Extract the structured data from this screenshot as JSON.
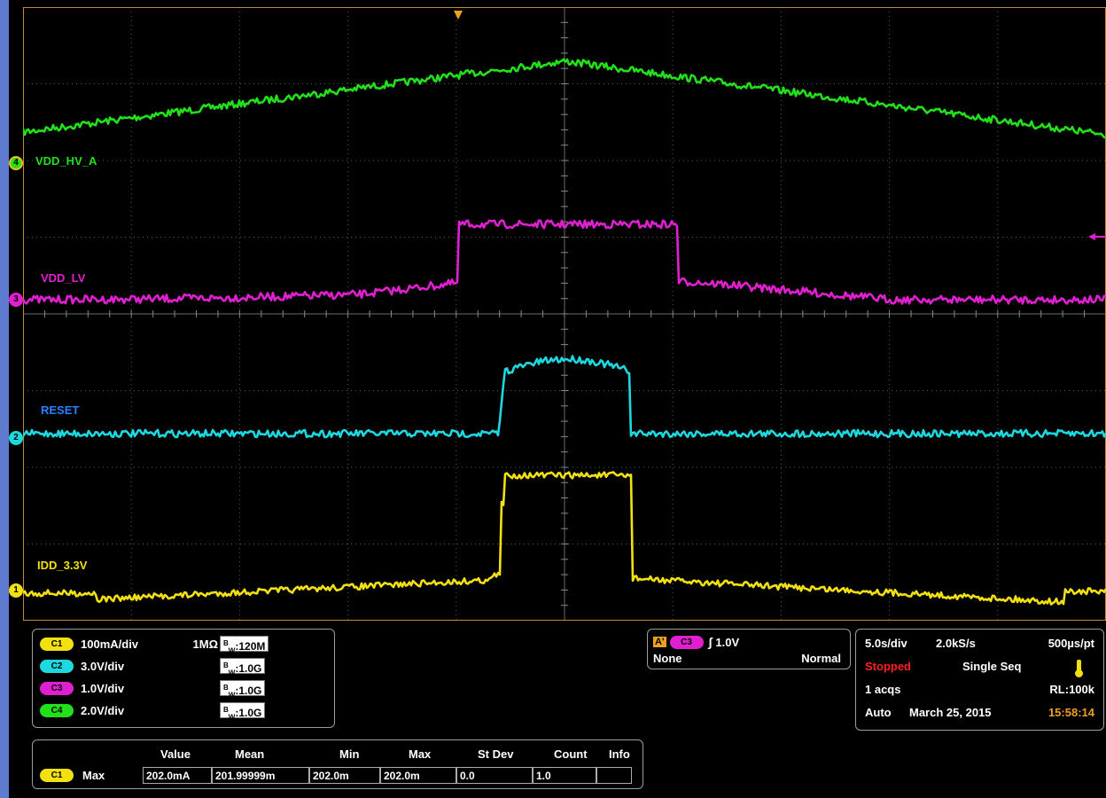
{
  "channels": [
    {
      "id": "4",
      "label": "VDD_HV_A",
      "color": "#22e01a"
    },
    {
      "id": "3",
      "label": "VDD_LV",
      "color": "#e020d0"
    },
    {
      "id": "2",
      "label": "RESET",
      "color": "#1ed8e0"
    },
    {
      "id": "1",
      "label": "IDD_3.3V",
      "color": "#f2e010"
    }
  ],
  "channel_label_colors": {
    "VDD_HV_A": "#22e01a",
    "VDD_LV": "#e020d0",
    "RESET": "#2a80ff",
    "IDD_3.3V": "#f2e010"
  },
  "vertical": {
    "rows": [
      {
        "chip": "C1",
        "chip_color": "#f2e010",
        "scale": "100mA/div",
        "impedance": "1MΩ",
        "bw": "120M"
      },
      {
        "chip": "C2",
        "chip_color": "#1ed8e0",
        "scale": "3.0V/div",
        "impedance": "",
        "bw": "1.0G"
      },
      {
        "chip": "C3",
        "chip_color": "#e020d0",
        "scale": "1.0V/div",
        "impedance": "",
        "bw": "1.0G"
      },
      {
        "chip": "C4",
        "chip_color": "#22e01a",
        "scale": "2.0V/div",
        "impedance": "",
        "bw": "1.0G"
      }
    ],
    "bw_prefix_top": "B",
    "bw_prefix_sub": "W"
  },
  "trigger": {
    "badge": "A'",
    "source": "C3",
    "slope_symbol": "∫",
    "level": "1.0V",
    "coupling": "None",
    "mode": "Normal"
  },
  "acquisition": {
    "time_div": "5.0s/div",
    "sample_rate": "2.0kS/s",
    "resolution": "500µs/pt",
    "state": "Stopped",
    "state_color": "#ff2020",
    "seq": "Single Seq",
    "acqs": "1 acqs",
    "record_length": "RL:100k",
    "auto": "Auto",
    "date": "March 25, 2015",
    "time": "15:58:14",
    "time_color": "#f0a020"
  },
  "measurements": {
    "headers": [
      "Value",
      "Mean",
      "Min",
      "Max",
      "St Dev",
      "Count",
      "Info"
    ],
    "rows": [
      {
        "chip": "C1",
        "name": "Max",
        "values": [
          "202.0mA",
          "201.99999m",
          "202.0m",
          "202.0m",
          "0.0",
          "1.0",
          ""
        ]
      }
    ]
  }
}
